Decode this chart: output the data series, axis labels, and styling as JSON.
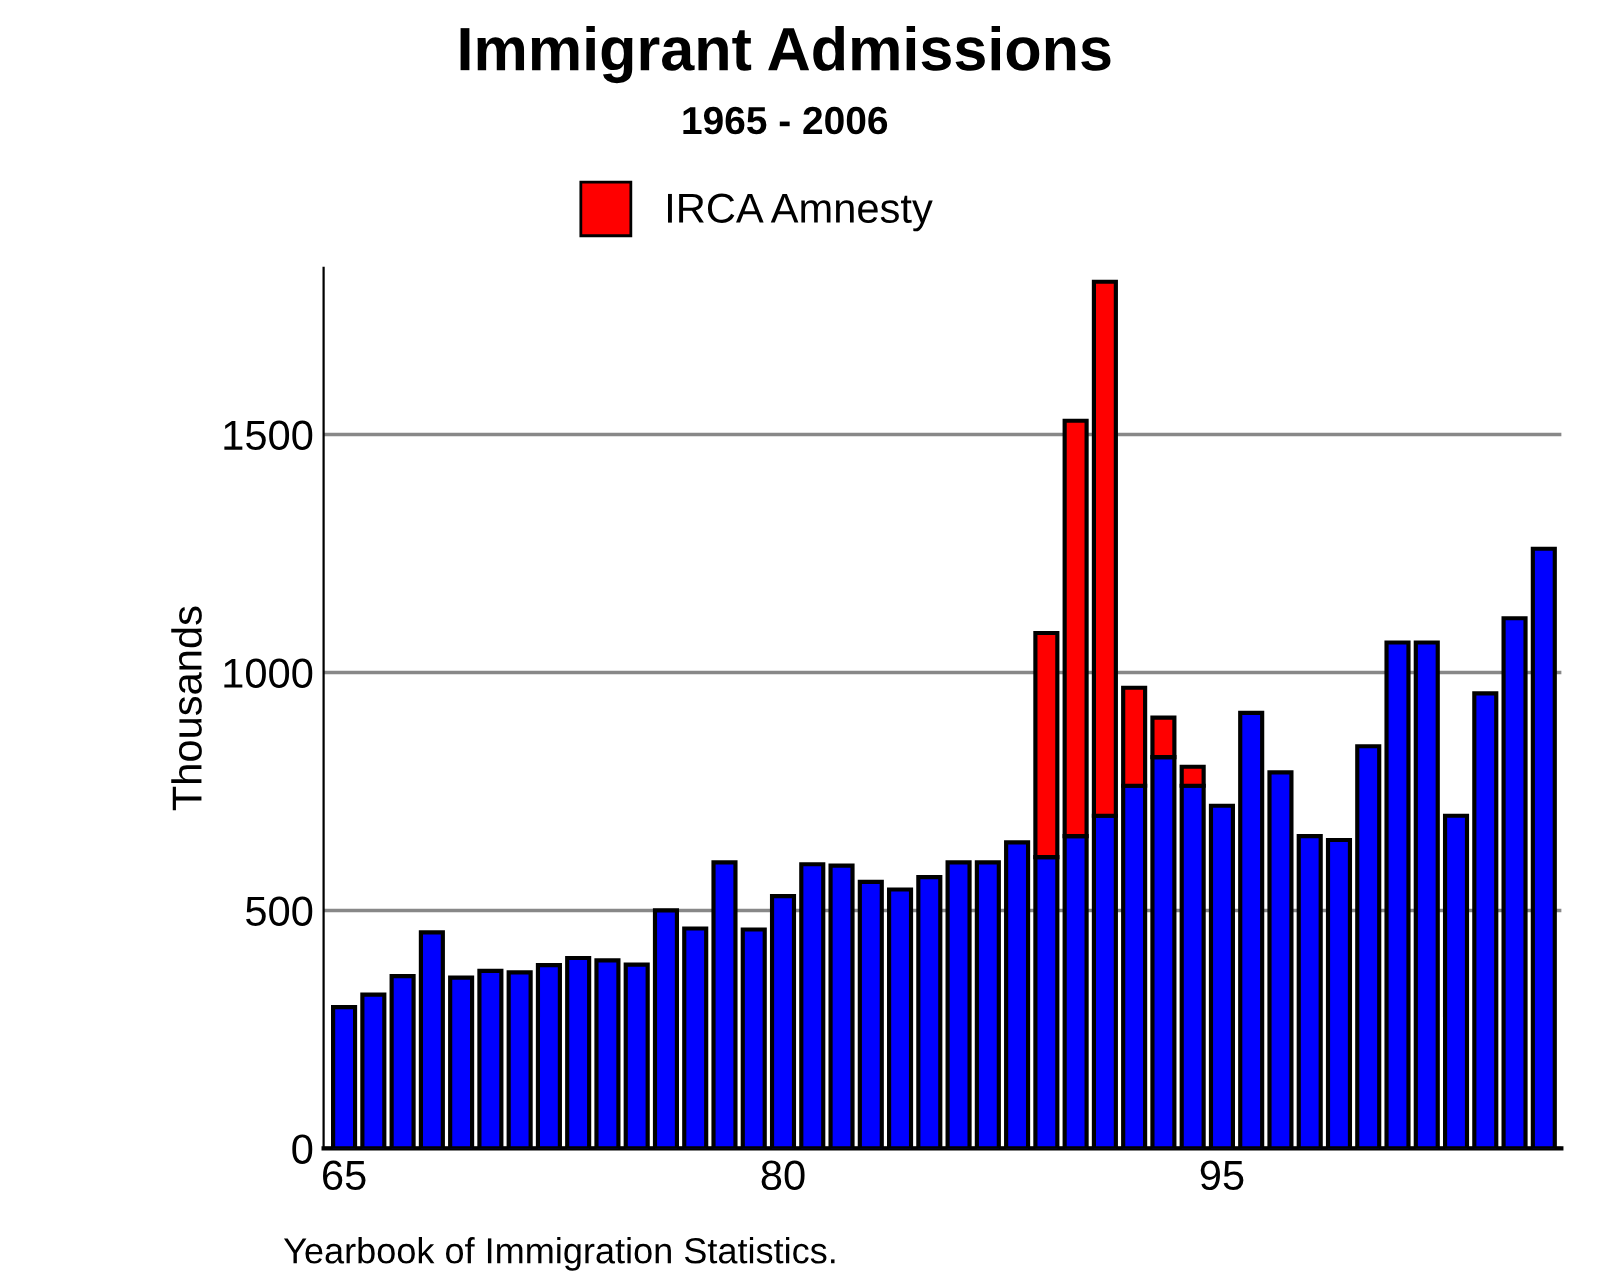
{
  "chart_data": {
    "type": "bar",
    "title": "Immigrant Admissions",
    "subtitle": "1965 - 2006",
    "ylabel": "Thousands",
    "categories": [
      "65",
      null,
      null,
      null,
      null,
      null,
      null,
      null,
      null,
      null,
      null,
      null,
      null,
      null,
      null,
      "80",
      null,
      null,
      null,
      null,
      null,
      null,
      null,
      null,
      null,
      null,
      null,
      null,
      null,
      null,
      "95",
      null,
      null,
      null,
      null,
      null,
      null,
      null,
      null,
      null,
      null,
      null
    ],
    "stacked": true,
    "series": [
      {
        "color": "#0000ff",
        "values": [
          297,
          323,
          362,
          454,
          359,
          373,
          370,
          385,
          400,
          395,
          386,
          500,
          462,
          601,
          460,
          530,
          597,
          594,
          560,
          544,
          570,
          601,
          601,
          643,
          612,
          656,
          699,
          762,
          822,
          762,
          720,
          915,
          790,
          656,
          648,
          845,
          1063,
          1063,
          699,
          956,
          1114,
          1260
        ]
      },
      {
        "name": "IRCA Amnesty",
        "color": "#ff0000",
        "values": [
          null,
          null,
          null,
          null,
          null,
          null,
          null,
          null,
          null,
          null,
          null,
          null,
          null,
          null,
          null,
          null,
          null,
          null,
          null,
          null,
          null,
          null,
          null,
          null,
          471,
          873,
          1122,
          206,
          83,
          40,
          null,
          null,
          null,
          null,
          null,
          null,
          null,
          null,
          null,
          null,
          null,
          null
        ]
      }
    ],
    "ylim": [
      0,
      1850
    ],
    "yticks": [
      0,
      500,
      1000,
      1500
    ],
    "grid": "y",
    "legend": "top",
    "annotations": [
      "Yearbook of Immigration Statistics."
    ]
  }
}
